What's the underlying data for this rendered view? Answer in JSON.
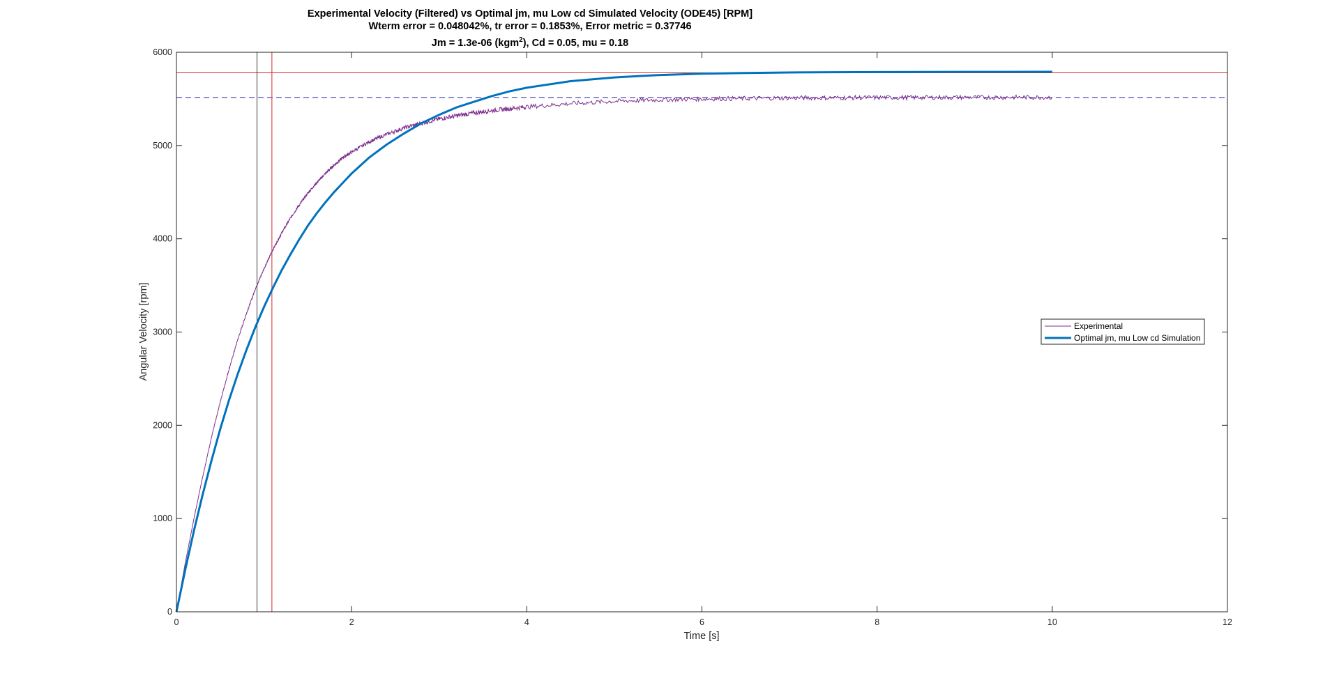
{
  "chart_data": {
    "type": "line",
    "title": {
      "line1": "Experimental Velocity (Filtered) vs Optimal jm, mu Low cd Simulated Velocity (ODE45) [RPM]",
      "line2": "Wterm error = 0.048042%, tr error = 0.1853%, Error metric = 0.37746",
      "line3_pre": "Jm = 1.3e-06 (kgm",
      "line3_sup": "2",
      "line3_post": "), Cd = 0.05, mu = 0.18"
    },
    "xlabel": "Time [s]",
    "ylabel": "Angular Velocity [rpm]",
    "xlim": [
      0,
      12
    ],
    "ylim": [
      0,
      6000
    ],
    "xticks": [
      0,
      2,
      4,
      6,
      8,
      10,
      12
    ],
    "yticks": [
      0,
      1000,
      2000,
      3000,
      4000,
      5000,
      6000
    ],
    "grid": false,
    "legend_position": "right",
    "series": [
      {
        "name": "Experimental",
        "color": "#7e2f8e",
        "x": [
          0,
          0.1,
          0.2,
          0.3,
          0.4,
          0.5,
          0.6,
          0.7,
          0.8,
          0.9,
          1.0,
          1.1,
          1.2,
          1.3,
          1.4,
          1.5,
          1.6,
          1.7,
          1.8,
          1.9,
          2.0,
          2.2,
          2.4,
          2.6,
          2.8,
          3.0,
          3.2,
          3.4,
          3.6,
          3.8,
          4.0,
          4.5,
          5.0,
          5.5,
          6.0,
          6.5,
          7.0,
          7.5,
          8.0,
          8.5,
          9.0,
          9.5,
          10.0
        ],
        "y": [
          0,
          520,
          1000,
          1450,
          1870,
          2250,
          2600,
          2920,
          3200,
          3460,
          3680,
          3880,
          4060,
          4220,
          4360,
          4490,
          4600,
          4700,
          4790,
          4870,
          4930,
          5040,
          5120,
          5190,
          5240,
          5285,
          5320,
          5350,
          5375,
          5395,
          5415,
          5450,
          5475,
          5490,
          5500,
          5505,
          5510,
          5512,
          5514,
          5515,
          5516,
          5517,
          5518
        ]
      },
      {
        "name": "Optimal jm, mu Low cd Simulation",
        "color": "#0072bd",
        "x": [
          0,
          0.1,
          0.2,
          0.3,
          0.4,
          0.5,
          0.6,
          0.7,
          0.8,
          0.9,
          1.0,
          1.1,
          1.2,
          1.3,
          1.4,
          1.5,
          1.6,
          1.7,
          1.8,
          1.9,
          2.0,
          2.2,
          2.4,
          2.6,
          2.8,
          3.0,
          3.2,
          3.4,
          3.6,
          3.8,
          4.0,
          4.5,
          5.0,
          5.5,
          6.0,
          6.5,
          7.0,
          7.5,
          8.0,
          8.5,
          9.0,
          9.5,
          10.0
        ],
        "y": [
          0,
          450,
          870,
          1260,
          1620,
          1960,
          2270,
          2550,
          2810,
          3050,
          3270,
          3470,
          3660,
          3830,
          3990,
          4140,
          4270,
          4390,
          4500,
          4600,
          4700,
          4870,
          5010,
          5130,
          5240,
          5330,
          5410,
          5470,
          5530,
          5580,
          5620,
          5690,
          5730,
          5755,
          5770,
          5778,
          5783,
          5786,
          5788,
          5789,
          5790,
          5790,
          5791
        ]
      }
    ],
    "reference_lines": {
      "horizontal": [
        {
          "y": 5780,
          "color": "#d62728",
          "style": "solid"
        },
        {
          "y": 5515,
          "color": "#2222aa",
          "style": "dashed"
        }
      ],
      "vertical": [
        {
          "x": 0.92,
          "color": "#333333",
          "style": "solid"
        },
        {
          "x": 1.09,
          "color": "#d62728",
          "style": "solid"
        }
      ]
    }
  }
}
